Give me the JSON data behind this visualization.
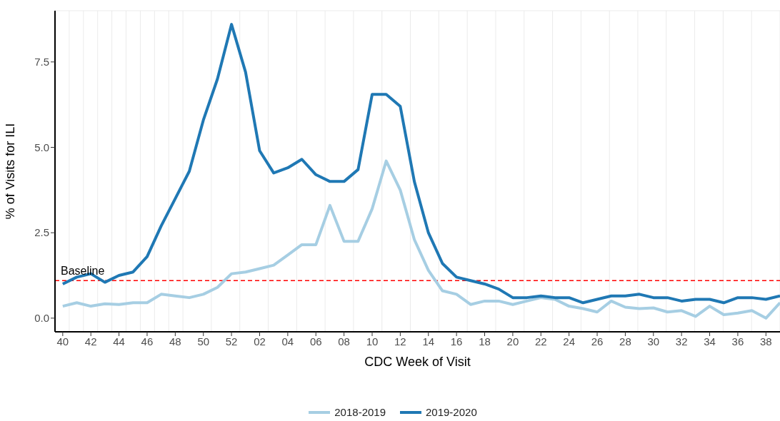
{
  "chart_data": {
    "type": "line",
    "xlabel": "CDC Week of Visit",
    "ylabel": "% of Visits for ILI",
    "categories": [
      "40",
      null,
      "42",
      null,
      "44",
      null,
      "46",
      null,
      "48",
      null,
      "50",
      null,
      "52",
      null,
      "02",
      null,
      "04",
      null,
      "06",
      null,
      "08",
      null,
      "10",
      null,
      "12",
      null,
      "14",
      null,
      "16",
      null,
      "18",
      null,
      "20",
      null,
      "22",
      null,
      "24",
      null,
      "26",
      null,
      "28",
      null,
      "30",
      null,
      "32",
      null,
      "34",
      null,
      "36",
      null,
      "38",
      null
    ],
    "series": [
      {
        "name": "2018-2019",
        "color": "#a6cee3",
        "values": [
          0.35,
          0.45,
          0.35,
          0.42,
          0.4,
          0.45,
          0.45,
          0.7,
          0.65,
          0.6,
          0.7,
          0.9,
          1.3,
          1.35,
          1.45,
          1.55,
          1.85,
          2.15,
          2.15,
          3.3,
          2.25,
          2.25,
          3.2,
          4.6,
          3.75,
          2.3,
          1.4,
          0.8,
          0.7,
          0.4,
          0.5,
          0.5,
          0.4,
          0.5,
          0.6,
          0.55,
          0.35,
          0.28,
          0.18,
          0.5,
          0.32,
          0.28,
          0.3,
          0.18,
          0.22,
          0.05,
          0.35,
          0.1,
          0.15,
          0.22,
          0,
          0.45
        ]
      },
      {
        "name": "2019-2020",
        "color": "#1f78b4",
        "values": [
          1.0,
          1.2,
          1.3,
          1.05,
          1.25,
          1.35,
          1.8,
          2.7,
          3.5,
          4.3,
          5.8,
          7.0,
          8.6,
          7.2,
          4.9,
          4.25,
          4.4,
          4.65,
          4.2,
          4.0,
          4.0,
          4.35,
          6.55,
          6.55,
          6.2,
          4.0,
          2.5,
          1.6,
          1.2,
          1.1,
          1.0,
          0.85,
          0.6,
          0.6,
          0.65,
          0.6,
          0.6,
          0.45,
          0.55,
          0.65,
          0.65,
          0.7,
          0.6,
          0.6,
          0.5,
          0.55,
          0.55,
          0.45,
          0.6,
          0.6,
          0.55,
          0.65
        ]
      }
    ],
    "ylim": [
      -0.4,
      9
    ],
    "yticks": [
      {
        "value": 0,
        "label": "0.0"
      },
      {
        "value": 2.5,
        "label": "2.5"
      },
      {
        "value": 5,
        "label": "5.0"
      },
      {
        "value": 7.5,
        "label": "7.5"
      }
    ],
    "ref_lines": [
      {
        "axis": "y",
        "value": 1.1,
        "label": "Baseline",
        "color": "#ff0000",
        "line_style": "dashed"
      }
    ],
    "grid": true,
    "legend": "bottom",
    "marker": "none",
    "line_style": "solid"
  }
}
